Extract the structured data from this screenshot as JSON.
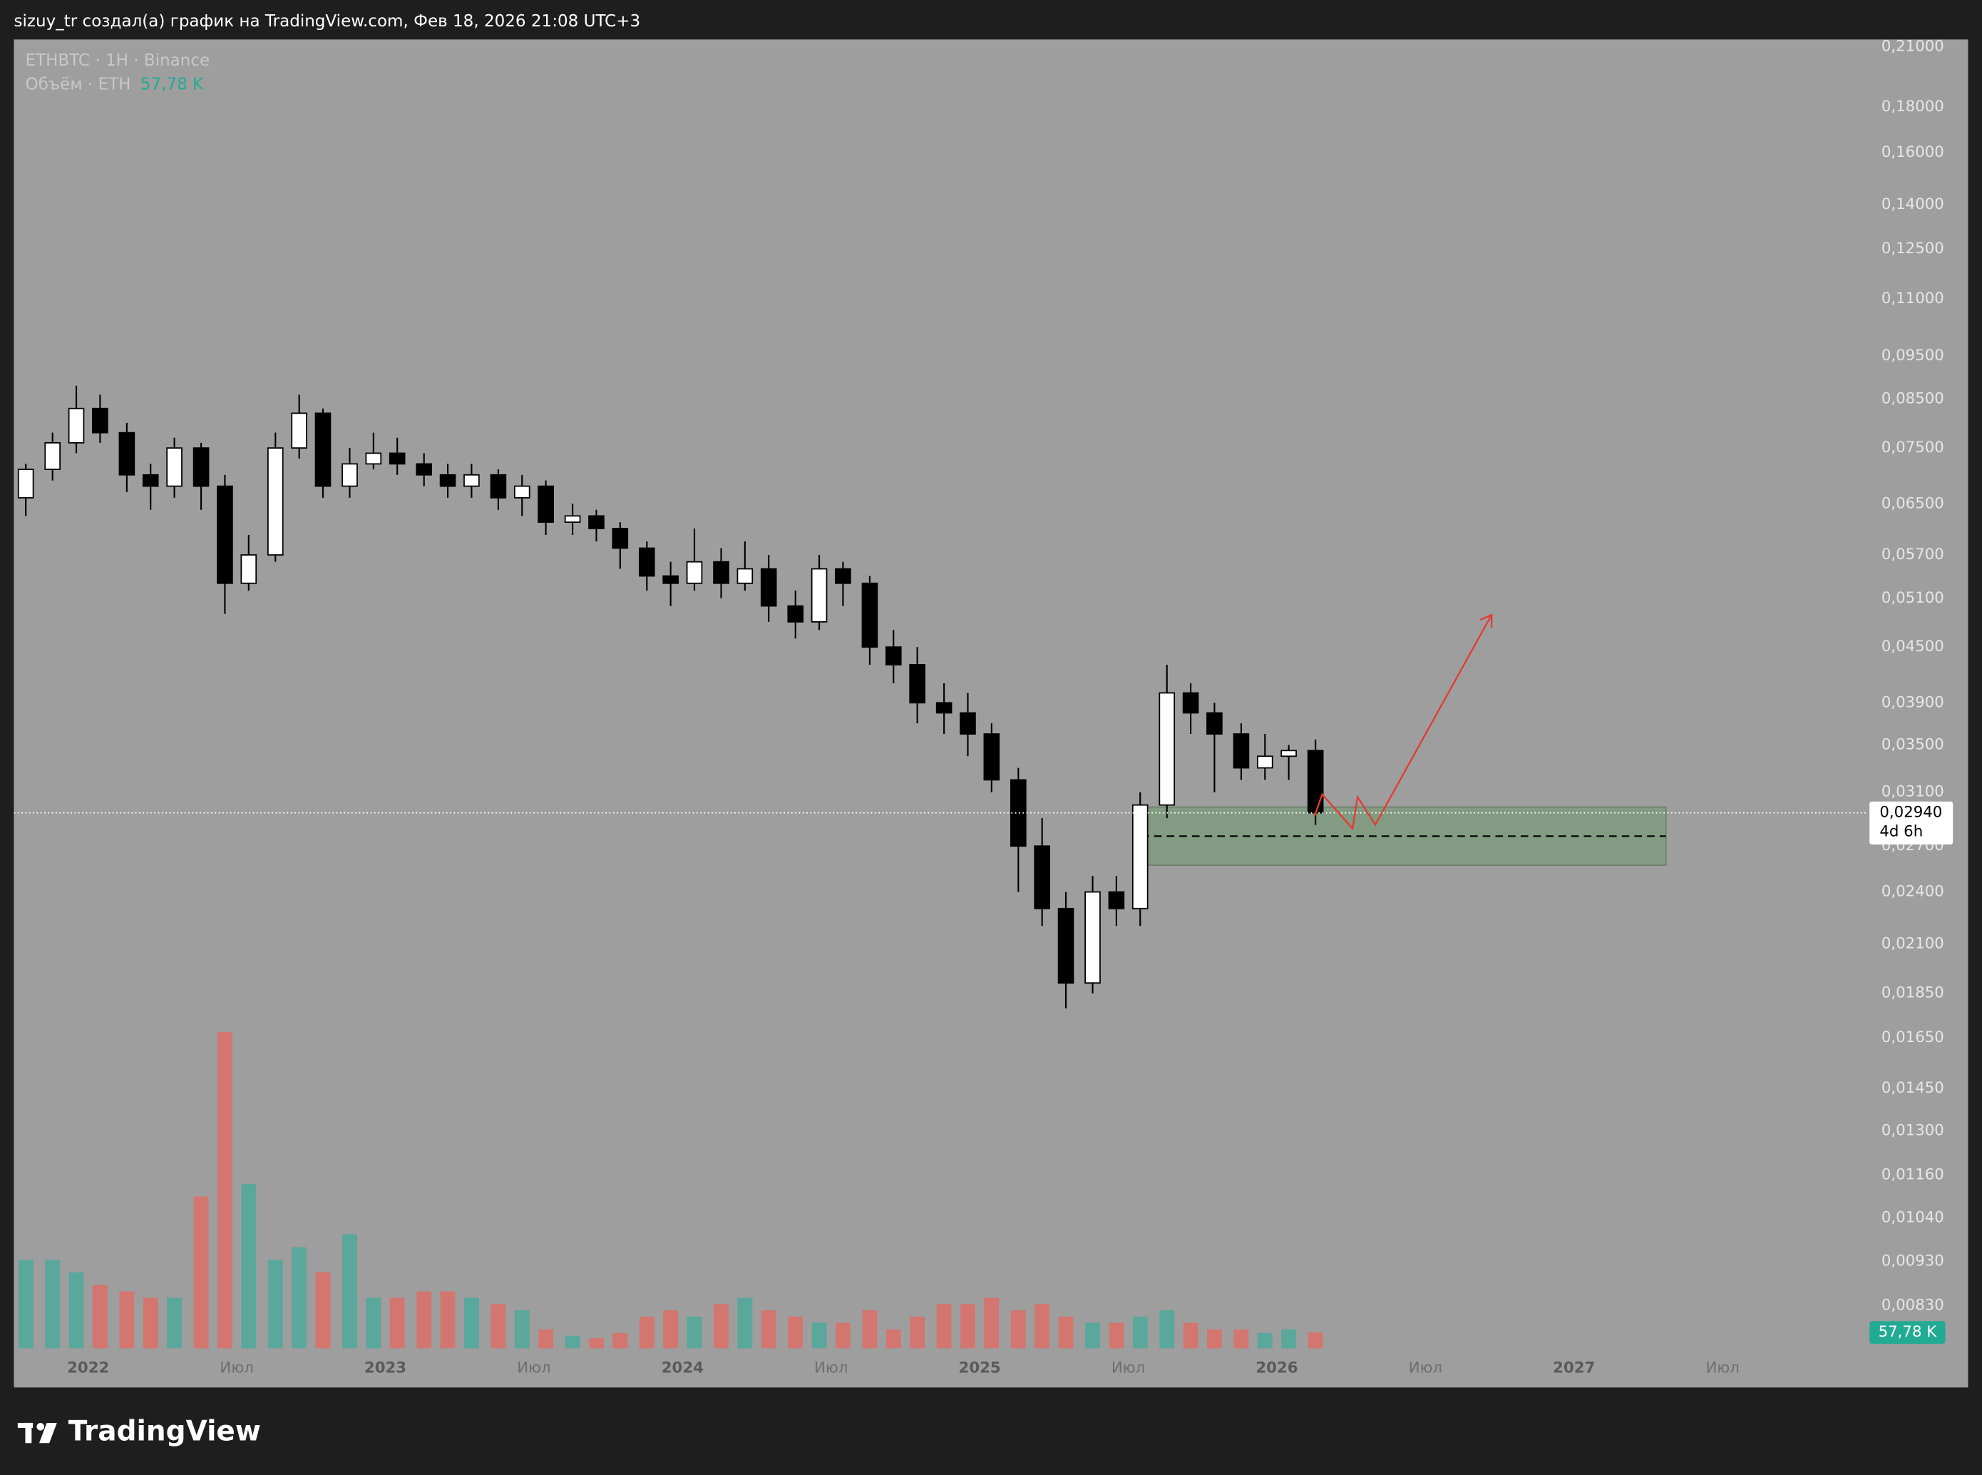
{
  "header": {
    "caption": "sizuy_tr создал(а) график на TradingView.com, Фев 18, 2026 21:08 UTC+3"
  },
  "footer": {
    "brand": "TradingView"
  },
  "chart_data": {
    "type": "candlestick",
    "legend": {
      "symbol": "ETHBTC · 1H · Binance",
      "volume_name": "Объём · ETH"
    },
    "log_scale": true,
    "grid": false,
    "xlim": [
      2021.75,
      2027.99
    ],
    "xticks": [
      {
        "value": 2022,
        "label": "2022"
      },
      {
        "value": 2022.5,
        "label": "Июл"
      },
      {
        "value": 2023,
        "label": "2023"
      },
      {
        "value": 2023.5,
        "label": "Июл"
      },
      {
        "value": 2024,
        "label": "2024"
      },
      {
        "value": 2024.5,
        "label": "Июл"
      },
      {
        "value": 2025,
        "label": "2025"
      },
      {
        "value": 2025.5,
        "label": "Июл"
      },
      {
        "value": 2026,
        "label": "2026"
      },
      {
        "value": 2026.5,
        "label": "Июл"
      },
      {
        "value": 2027,
        "label": "2027"
      },
      {
        "value": 2027.5,
        "label": "Июл"
      }
    ],
    "ylim": [
      0.00744,
      0.214
    ],
    "yticks": [
      {
        "value": 0.21,
        "label": "0,21000"
      },
      {
        "value": 0.18,
        "label": "0,18000"
      },
      {
        "value": 0.16,
        "label": "0,16000"
      },
      {
        "value": 0.14,
        "label": "0,14000"
      },
      {
        "value": 0.125,
        "label": "0,12500"
      },
      {
        "value": 0.11,
        "label": "0,11000"
      },
      {
        "value": 0.095,
        "label": "0,09500"
      },
      {
        "value": 0.085,
        "label": "0,08500"
      },
      {
        "value": 0.075,
        "label": "0,07500"
      },
      {
        "value": 0.065,
        "label": "0,06500"
      },
      {
        "value": 0.057,
        "label": "0,05700"
      },
      {
        "value": 0.051,
        "label": "0,05100"
      },
      {
        "value": 0.045,
        "label": "0,04500"
      },
      {
        "value": 0.039,
        "label": "0,03900"
      },
      {
        "value": 0.035,
        "label": "0,03500"
      },
      {
        "value": 0.031,
        "label": "0,03100"
      },
      {
        "value": 0.027,
        "label": "0,02700"
      },
      {
        "value": 0.024,
        "label": "0,02400"
      },
      {
        "value": 0.021,
        "label": "0,02100"
      },
      {
        "value": 0.0185,
        "label": "0,01850"
      },
      {
        "value": 0.0165,
        "label": "0,01650"
      },
      {
        "value": 0.0145,
        "label": "0,01450"
      },
      {
        "value": 0.013,
        "label": "0,01300"
      },
      {
        "value": 0.0116,
        "label": "0,01160"
      },
      {
        "value": 0.0104,
        "label": "0,01040"
      },
      {
        "value": 0.0093,
        "label": "0,00930"
      },
      {
        "value": 0.0083,
        "label": "0,00830"
      }
    ],
    "up_color": "#ffffff",
    "down_color": "#000000",
    "volume_up_color": "#5aa79b",
    "volume_down_color": "#d3766f",
    "x": [
      2021.79,
      2021.88,
      2021.96,
      2022.04,
      2022.13,
      2022.21,
      2022.29,
      2022.38,
      2022.46,
      2022.54,
      2022.63,
      2022.71,
      2022.79,
      2022.88,
      2022.96,
      2023.04,
      2023.13,
      2023.21,
      2023.29,
      2023.38,
      2023.46,
      2023.54,
      2023.63,
      2023.71,
      2023.79,
      2023.88,
      2023.96,
      2024.04,
      2024.13,
      2024.21,
      2024.29,
      2024.38,
      2024.46,
      2024.54,
      2024.63,
      2024.71,
      2024.79,
      2024.88,
      2024.96,
      2025.04,
      2025.13,
      2025.21,
      2025.29,
      2025.38,
      2025.46,
      2025.54,
      2025.63,
      2025.71,
      2025.79,
      2025.88,
      2025.96,
      2026.04,
      2026.13
    ],
    "open": [
      0.066,
      0.071,
      0.076,
      0.083,
      0.078,
      0.07,
      0.068,
      0.075,
      0.068,
      0.053,
      0.057,
      0.075,
      0.082,
      0.068,
      0.072,
      0.074,
      0.072,
      0.07,
      0.068,
      0.07,
      0.066,
      0.068,
      0.062,
      0.063,
      0.061,
      0.058,
      0.054,
      0.053,
      0.056,
      0.053,
      0.055,
      0.05,
      0.048,
      0.055,
      0.053,
      0.045,
      0.043,
      0.039,
      0.038,
      0.036,
      0.032,
      0.027,
      0.023,
      0.019,
      0.024,
      0.023,
      0.03,
      0.04,
      0.038,
      0.036,
      0.033,
      0.034,
      0.0345
    ],
    "high": [
      0.072,
      0.078,
      0.088,
      0.086,
      0.08,
      0.072,
      0.077,
      0.076,
      0.07,
      0.06,
      0.078,
      0.086,
      0.083,
      0.075,
      0.078,
      0.077,
      0.074,
      0.072,
      0.072,
      0.071,
      0.07,
      0.069,
      0.065,
      0.064,
      0.062,
      0.059,
      0.056,
      0.061,
      0.058,
      0.059,
      0.057,
      0.052,
      0.057,
      0.056,
      0.054,
      0.047,
      0.045,
      0.041,
      0.04,
      0.037,
      0.033,
      0.029,
      0.024,
      0.025,
      0.025,
      0.031,
      0.043,
      0.041,
      0.039,
      0.037,
      0.036,
      0.035,
      0.0355
    ],
    "low": [
      0.063,
      0.069,
      0.074,
      0.076,
      0.067,
      0.064,
      0.066,
      0.064,
      0.049,
      0.052,
      0.056,
      0.073,
      0.066,
      0.066,
      0.071,
      0.07,
      0.068,
      0.066,
      0.066,
      0.064,
      0.063,
      0.06,
      0.06,
      0.059,
      0.055,
      0.052,
      0.05,
      0.052,
      0.051,
      0.052,
      0.048,
      0.046,
      0.047,
      0.05,
      0.043,
      0.041,
      0.037,
      0.036,
      0.034,
      0.031,
      0.024,
      0.022,
      0.0178,
      0.0185,
      0.022,
      0.022,
      0.029,
      0.036,
      0.031,
      0.032,
      0.032,
      0.032,
      0.0285
    ],
    "close": [
      0.071,
      0.076,
      0.083,
      0.078,
      0.07,
      0.068,
      0.075,
      0.068,
      0.053,
      0.057,
      0.075,
      0.082,
      0.068,
      0.072,
      0.074,
      0.072,
      0.07,
      0.068,
      0.07,
      0.066,
      0.068,
      0.062,
      0.063,
      0.061,
      0.058,
      0.054,
      0.053,
      0.056,
      0.053,
      0.055,
      0.05,
      0.048,
      0.055,
      0.053,
      0.045,
      0.043,
      0.039,
      0.038,
      0.036,
      0.032,
      0.027,
      0.023,
      0.019,
      0.024,
      0.023,
      0.03,
      0.04,
      0.038,
      0.036,
      0.033,
      0.034,
      0.0345,
      0.0294
    ],
    "volume_ylim": [
      0,
      1250
    ],
    "volume": [
      324,
      324,
      278,
      232,
      208,
      185,
      185,
      556,
      1158,
      602,
      324,
      370,
      278,
      417,
      185,
      185,
      208,
      208,
      185,
      162,
      139,
      69,
      46,
      37,
      56,
      116,
      139,
      116,
      162,
      185,
      139,
      116,
      93,
      93,
      139,
      69,
      116,
      162,
      162,
      185,
      139,
      162,
      116,
      93,
      93,
      116,
      139,
      93,
      69,
      69,
      56,
      69,
      57.78
    ],
    "last_volume": {
      "value": 57.78,
      "label": "57,78 K"
    },
    "last_price": {
      "value": 0.0294,
      "label": "0,02940"
    },
    "countdown": "4d 6h"
  }
}
